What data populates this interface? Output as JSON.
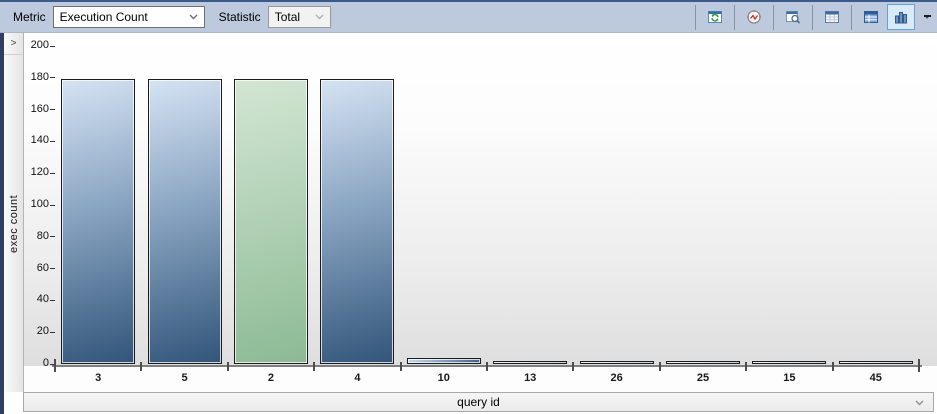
{
  "toolbar": {
    "metric_label": "Metric",
    "metric_value": "Execution Count",
    "statistic_label": "Statistic",
    "statistic_value": "Total",
    "icon_buttons": [
      "refresh-icon",
      "gauge-icon",
      "preview-grid-icon",
      "grid-header-icon",
      "table-grid-icon",
      "bar-chart-icon"
    ],
    "selected_button": "bar-chart",
    "overflow_icon": "chevron-down-icon"
  },
  "side_panel": {
    "expander_glyph": ">",
    "axis_title": "exec count"
  },
  "bottom_bar": {
    "label": "query id",
    "chevron_icon": "chevron-down-icon"
  },
  "chart_data": {
    "type": "bar",
    "categories": [
      "3",
      "5",
      "2",
      "4",
      "10",
      "13",
      "26",
      "25",
      "15",
      "45"
    ],
    "values": [
      179,
      179,
      179,
      179,
      4,
      2,
      2,
      2,
      2,
      2
    ],
    "highlighted_category": "2",
    "title": "",
    "xlabel": "query id",
    "ylabel": "exec count",
    "ylim": [
      0,
      200
    ],
    "ytick_step": 20,
    "grid": false,
    "legend_position": "none",
    "colors": {
      "bar_top": "#d5e3f3",
      "bar_mid": "#8aa5c2",
      "bar_bottom": "#32557a",
      "highlight_top": "#d3e6d4",
      "highlight_bottom": "#8cba94"
    }
  },
  "colors": {
    "toolbar_bg": "#bdcadd",
    "toolbar_top_border": "#3b5a8a",
    "left_strip": "#2d3f63",
    "selected_button_bg": "#d9eaf9",
    "selected_button_border": "#68a0d0",
    "axis_line": "#7f7f7f"
  }
}
